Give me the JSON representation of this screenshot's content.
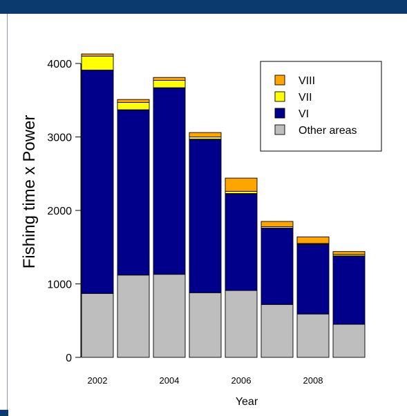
{
  "chart_data": {
    "type": "bar",
    "stacked": true,
    "categories": [
      "2002",
      "2003",
      "2004",
      "2005",
      "2006",
      "2007",
      "2008",
      "2009"
    ],
    "tick_labels_shown": [
      "2002",
      "2004",
      "2006",
      "2008"
    ],
    "series": [
      {
        "name": "Other areas",
        "color": "#bebebe",
        "values": [
          870,
          1120,
          1130,
          880,
          910,
          720,
          590,
          450
        ]
      },
      {
        "name": "VI",
        "color": "#00008b",
        "values": [
          3040,
          2250,
          2540,
          2090,
          1320,
          1040,
          950,
          930
        ]
      },
      {
        "name": "VII",
        "color": "#ffff00",
        "values": [
          190,
          100,
          100,
          30,
          30,
          20,
          10,
          20
        ]
      },
      {
        "name": "VIII",
        "color": "#ffa500",
        "values": [
          30,
          40,
          40,
          60,
          180,
          70,
          90,
          40
        ]
      }
    ],
    "legend_order": [
      "VIII",
      "VII",
      "VI",
      "Other areas"
    ],
    "legend_position": "top-right",
    "xlabel": "Year",
    "ylabel": "Fishing time x Power",
    "yticks": [
      0,
      1000,
      2000,
      3000,
      4000
    ],
    "ylim": [
      0,
      4250
    ],
    "grid": false
  },
  "colors": {
    "frame": "#0b3a6e"
  }
}
